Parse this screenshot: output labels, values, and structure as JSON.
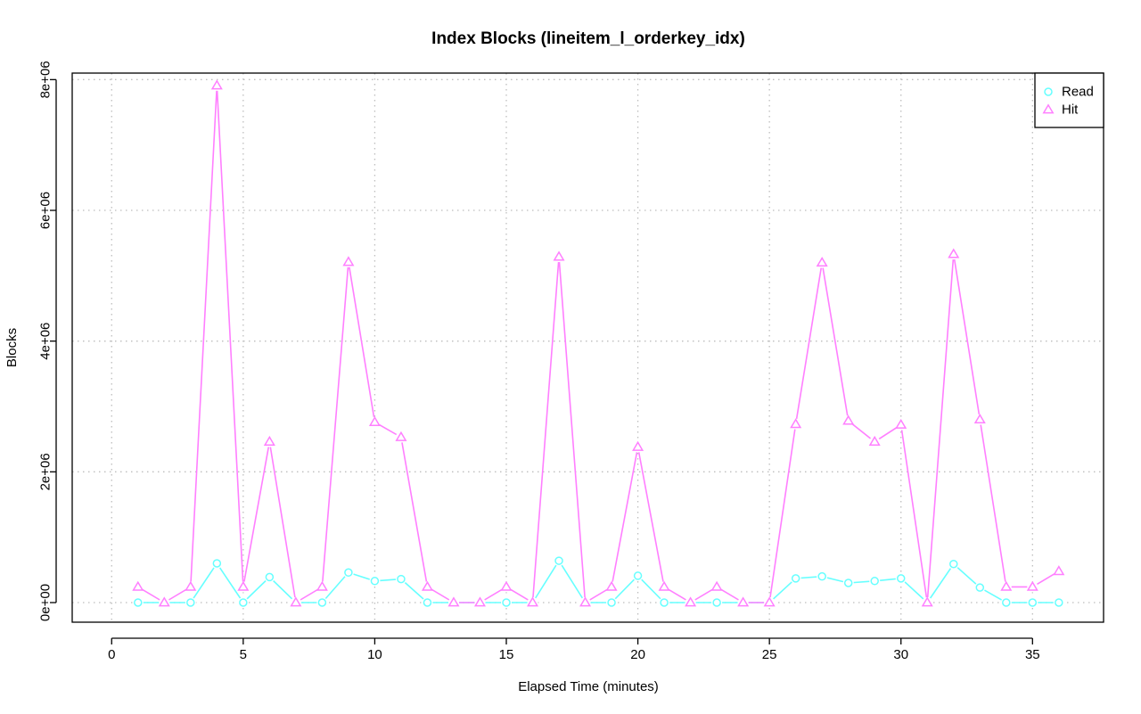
{
  "chart_data": {
    "type": "line",
    "title": "Index Blocks (lineitem_l_orderkey_idx)",
    "xlabel": "Elapsed Time (minutes)",
    "ylabel": "Blocks",
    "xlim": [
      -1.5,
      37.7
    ],
    "ylim": [
      -300000,
      8100000
    ],
    "x_ticks": [
      0,
      5,
      10,
      15,
      20,
      25,
      30,
      35
    ],
    "x_tick_labels": [
      "0",
      "5",
      "10",
      "15",
      "20",
      "25",
      "30",
      "35"
    ],
    "y_ticks": [
      0,
      2000000,
      4000000,
      6000000,
      8000000
    ],
    "y_tick_labels": [
      "0e+00",
      "2e+06",
      "4e+06",
      "6e+06",
      "8e+06"
    ],
    "grid": true,
    "legend_position": "top-right",
    "x": [
      1,
      2,
      3,
      4,
      5,
      6,
      7,
      8,
      9,
      10,
      11,
      12,
      13,
      14,
      15,
      16,
      17,
      18,
      19,
      20,
      21,
      22,
      23,
      24,
      25,
      26,
      27,
      28,
      29,
      30,
      31,
      32,
      33,
      34,
      35,
      36
    ],
    "series": [
      {
        "name": "Read",
        "color": "#66ffff",
        "marker": "circle",
        "values": [
          0,
          0,
          0,
          600000,
          0,
          390000,
          0,
          0,
          460000,
          330000,
          360000,
          0,
          0,
          0,
          0,
          0,
          640000,
          0,
          0,
          410000,
          0,
          0,
          0,
          0,
          0,
          370000,
          400000,
          300000,
          330000,
          370000,
          0,
          590000,
          230000,
          0,
          0,
          0
        ]
      },
      {
        "name": "Hit",
        "color": "#ff7fff",
        "marker": "triangle",
        "values": [
          240000,
          0,
          240000,
          7910000,
          240000,
          2460000,
          0,
          240000,
          5210000,
          2760000,
          2530000,
          240000,
          0,
          0,
          240000,
          0,
          5290000,
          0,
          240000,
          2380000,
          240000,
          0,
          240000,
          0,
          0,
          2730000,
          5200000,
          2780000,
          2460000,
          2720000,
          0,
          5330000,
          2800000,
          240000,
          240000,
          480000
        ]
      }
    ]
  }
}
